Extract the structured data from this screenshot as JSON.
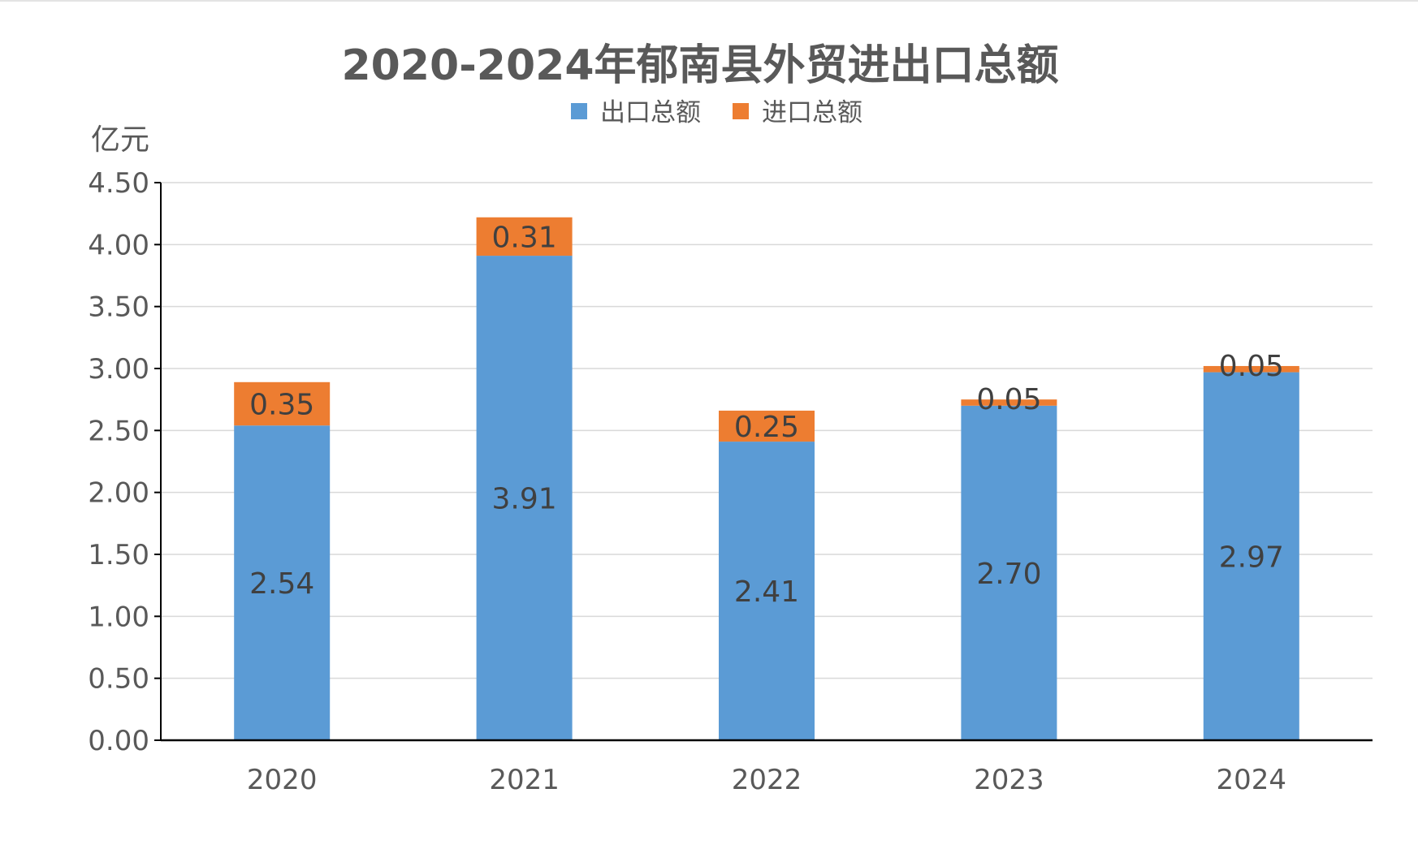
{
  "chart_data": {
    "type": "bar",
    "stacked": true,
    "title": "2020-2024年郁南县外贸进出口总额",
    "unit_label": "亿元",
    "categories": [
      "2020",
      "2021",
      "2022",
      "2023",
      "2024"
    ],
    "series": [
      {
        "name": "出口总额",
        "color": "#5b9bd5",
        "values": [
          2.54,
          3.91,
          2.41,
          2.7,
          2.97
        ],
        "labels": [
          "2.54",
          "3.91",
          "2.41",
          "2.70",
          "2.97"
        ]
      },
      {
        "name": "进口总额",
        "color": "#ed7d31",
        "values": [
          0.35,
          0.31,
          0.25,
          0.05,
          0.05
        ],
        "labels": [
          "0.35",
          "0.31",
          "0.25",
          "0.05",
          "0.05"
        ]
      }
    ],
    "ylim": [
      0,
      4.5
    ],
    "yticks": [
      "0.00",
      "0.50",
      "1.00",
      "1.50",
      "2.00",
      "2.50",
      "3.00",
      "3.50",
      "4.00",
      "4.50"
    ],
    "grid": true,
    "legend_position": "top"
  }
}
